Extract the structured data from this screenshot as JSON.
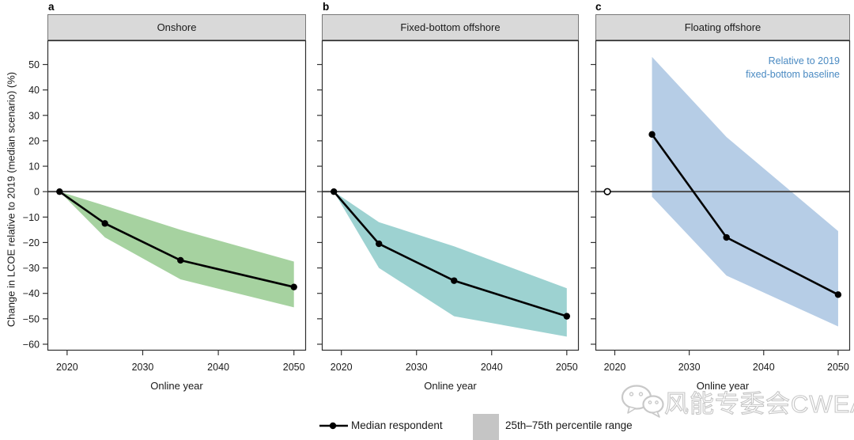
{
  "chart_data": {
    "type": "line",
    "title": "",
    "xlabel": "Online year",
    "ylabel": "Change in LCOE relative to 2019 (median scenario) (%)",
    "xlim": [
      2017.4,
      2051.6
    ],
    "ylim": [
      -62.5,
      59.5
    ],
    "x_ticks": [
      2020,
      2030,
      2040,
      2050
    ],
    "y_ticks": [
      50,
      40,
      30,
      20,
      10,
      0,
      -10,
      -20,
      -30,
      -40,
      -50,
      -60
    ],
    "grid": false,
    "legend_position": "bottom",
    "panels": [
      {
        "letter": "a",
        "title": "Onshore",
        "band_color": "#a6d2a0",
        "years": [
          2019,
          2025,
          2035,
          2050
        ],
        "median": [
          0,
          -12.5,
          -27,
          -37.5
        ],
        "band_upper": [
          0,
          -5.5,
          -15,
          -27.5
        ],
        "band_lower": [
          0,
          -18,
          -34.5,
          -45.5
        ]
      },
      {
        "letter": "b",
        "title": "Fixed-bottom offshore",
        "band_color": "#9dd2d1",
        "years": [
          2019,
          2025,
          2035,
          2050
        ],
        "median": [
          0,
          -20.5,
          -35,
          -49
        ],
        "band_upper": [
          0,
          -12,
          -21.5,
          -38
        ],
        "band_lower": [
          0,
          -30,
          -49,
          -57
        ]
      },
      {
        "letter": "c",
        "title": "Floating offshore",
        "band_color": "#b6cde6",
        "years": [
          2025,
          2035,
          2050
        ],
        "median": [
          22.5,
          -18,
          -40.5
        ],
        "band_upper": [
          53,
          21.5,
          -15.5
        ],
        "band_lower": [
          -2,
          -33,
          -53
        ],
        "reference_point": {
          "year": 2019,
          "value": 0,
          "style": "open-circle"
        },
        "annotation": {
          "text": "Relative to 2019 fixed-bottom baseline",
          "color": "#4a8ac2"
        }
      }
    ]
  },
  "legend": {
    "median_label": "Median respondent",
    "band_label": "25th–75th percentile range",
    "swatch_color": "#c5c5c5",
    "median_symbol": "line-with-dot"
  },
  "watermark": {
    "text": "风能专委会CWEA",
    "icon": "wechat-icon"
  },
  "colors": {
    "zero_line": "#4a4a4a",
    "median_line": "#000000",
    "frame": "#2e2e2e",
    "header_fill": "#d9d9d9"
  }
}
